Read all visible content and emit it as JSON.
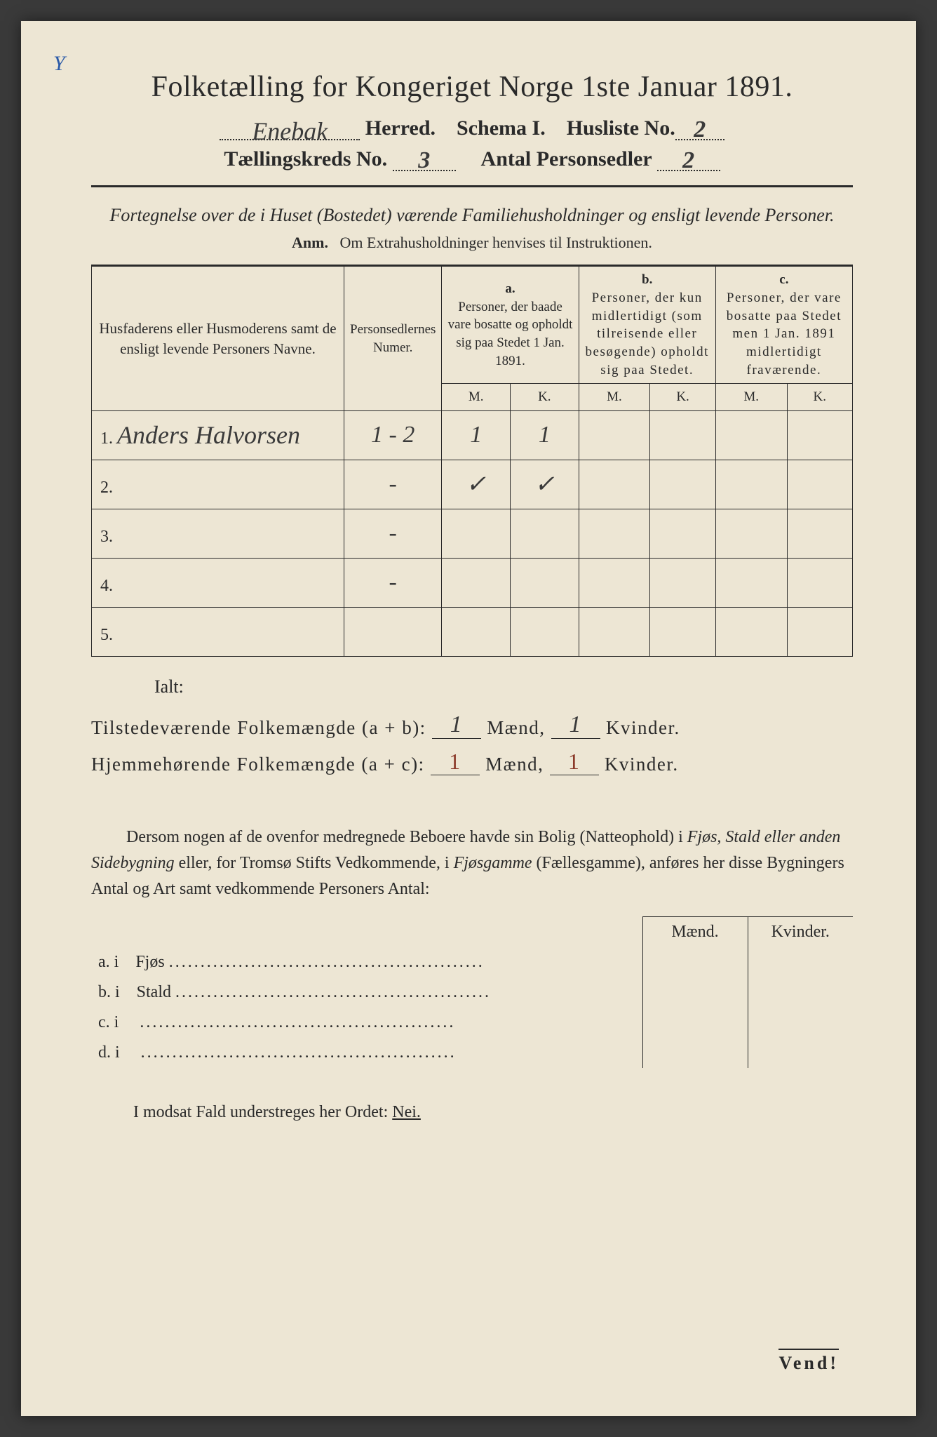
{
  "title": "Folketælling for Kongeriget Norge 1ste Januar 1891.",
  "marginal_mark": "Y",
  "header": {
    "herred_value": "Enebak",
    "herred_label": "Herred.",
    "schema_label": "Schema I.",
    "husliste_label": "Husliste No.",
    "husliste_value": "2",
    "kreds_label": "Tællingskreds No.",
    "kreds_value": "3",
    "sedler_label": "Antal Personsedler",
    "sedler_value": "2"
  },
  "intro": "Fortegnelse over de i Huset (Bostedet) værende Familiehusholdninger og ensligt levende Personer.",
  "anm_prefix": "Anm.",
  "anm_text": "Om Extrahusholdninger henvises til Instruktionen.",
  "table": {
    "col_names": "Husfaderens eller Husmoderens samt de ensligt levende Personers Navne.",
    "col_numer": "Personsedlernes Numer.",
    "col_a_label": "a.",
    "col_a_text": "Personer, der baade vare bosatte og opholdt sig paa Stedet 1 Jan. 1891.",
    "col_b_label": "b.",
    "col_b_text": "Personer, der kun midlertidigt (som tilreisende eller besøgende) opholdt sig paa Stedet.",
    "col_c_label": "c.",
    "col_c_text": "Personer, der vare bosatte paa Stedet men 1 Jan. 1891 midlertidigt fraværende.",
    "mk_m": "M.",
    "mk_k": "K.",
    "rows": [
      {
        "n": "1.",
        "name": "Anders Halvorsen",
        "num": "1 - 2",
        "a_m": "1",
        "a_k": "1",
        "b_m": "",
        "b_k": "",
        "c_m": "",
        "c_k": ""
      },
      {
        "n": "2.",
        "name": "",
        "num": "-",
        "a_m": "✓",
        "a_k": "✓",
        "b_m": "",
        "b_k": "",
        "c_m": "",
        "c_k": ""
      },
      {
        "n": "3.",
        "name": "",
        "num": "-",
        "a_m": "",
        "a_k": "",
        "b_m": "",
        "b_k": "",
        "c_m": "",
        "c_k": ""
      },
      {
        "n": "4.",
        "name": "",
        "num": "-",
        "a_m": "",
        "a_k": "",
        "b_m": "",
        "b_k": "",
        "c_m": "",
        "c_k": ""
      },
      {
        "n": "5.",
        "name": "",
        "num": "",
        "a_m": "",
        "a_k": "",
        "b_m": "",
        "b_k": "",
        "c_m": "",
        "c_k": ""
      }
    ]
  },
  "ialt": "Ialt:",
  "summary": {
    "line1_label": "Tilstedeværende Folkemængde (a + b):",
    "line2_label": "Hjemmehørende Folkemængde (a + c):",
    "maend": "Mænd,",
    "kvinder": "Kvinder.",
    "v1_m": "1",
    "v1_k": "1",
    "v2_m": "1",
    "v2_k": "1"
  },
  "para": "Dersom nogen af de ovenfor medregnede Beboere havde sin Bolig (Natteophold) i Fjøs, Stald eller anden Sidebygning eller, for Tromsø Stifts Vedkommende, i Fjøsgamme (Fællesgamme), anføres her disse Bygningers Antal og Art samt vedkommende Personers Antal:",
  "sec_table": {
    "h_maend": "Mænd.",
    "h_kvinder": "Kvinder.",
    "rows": [
      {
        "lbl": "a.  i",
        "item": "Fjøs"
      },
      {
        "lbl": "b.  i",
        "item": "Stald"
      },
      {
        "lbl": "c.  i",
        "item": ""
      },
      {
        "lbl": "d.  i",
        "item": ""
      }
    ]
  },
  "nei_line_prefix": "I modsat Fald understreges her Ordet:",
  "nei_word": "Nei.",
  "vend": "Vend!",
  "colors": {
    "paper": "#ede6d4",
    "ink": "#2a2a2a",
    "red_ink": "#8b3a2a",
    "blue_ink": "#2a5aa8"
  }
}
